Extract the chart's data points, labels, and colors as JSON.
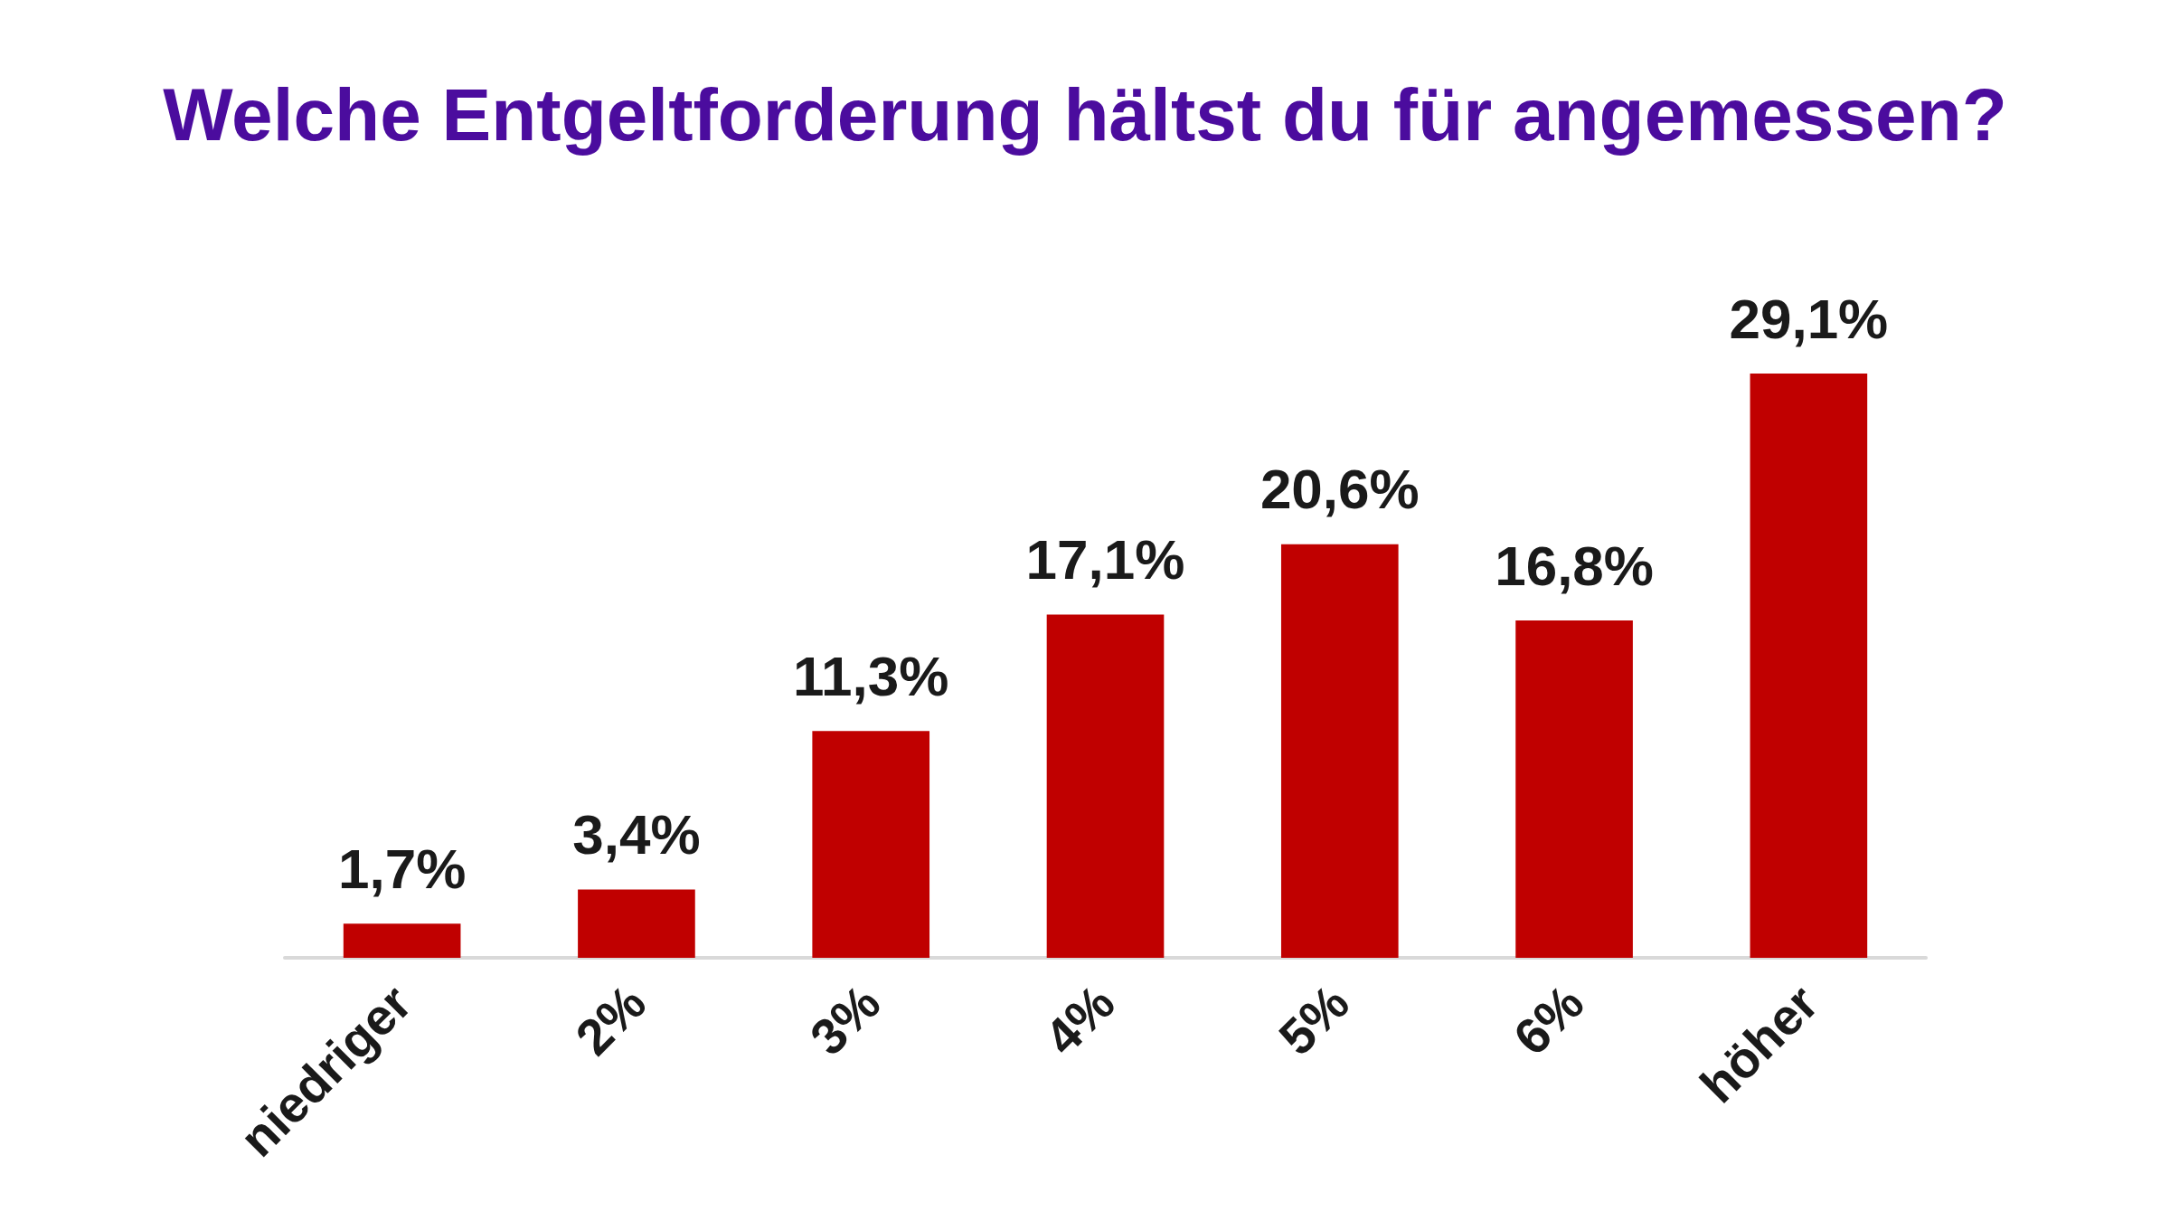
{
  "chart_data": {
    "type": "bar",
    "title": "Welche Entgeltforderung hältst du für angemessen?",
    "categories": [
      "niedriger",
      "2%",
      "3%",
      "4%",
      "5%",
      "6%",
      "höher"
    ],
    "values": [
      1.7,
      3.4,
      11.3,
      17.1,
      20.6,
      16.8,
      29.1
    ],
    "value_labels": [
      "1,7%",
      "3,4%",
      "11,3%",
      "17,1%",
      "20,6%",
      "16,8%",
      "29,1%"
    ],
    "color": "#c00000"
  }
}
